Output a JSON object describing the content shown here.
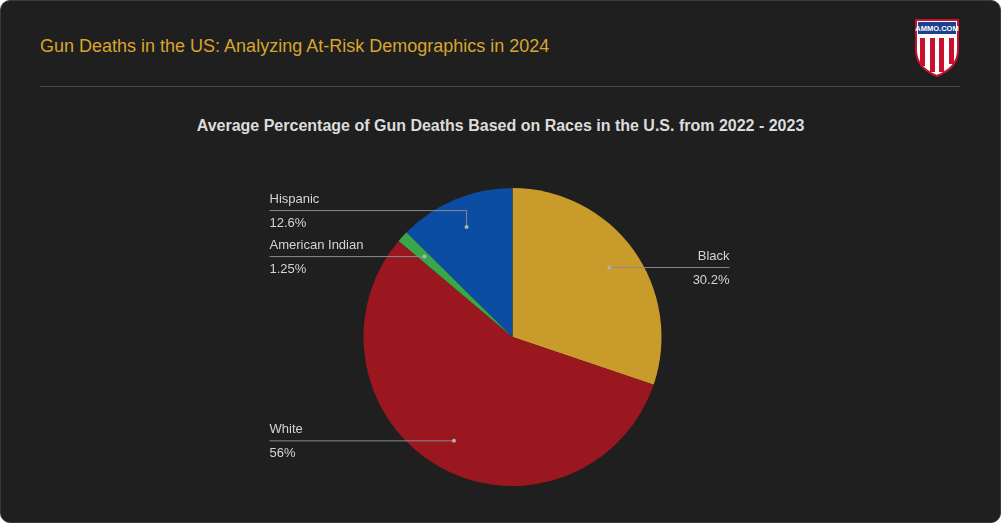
{
  "header": {
    "title": "Gun Deaths in the US: Analyzing At-Risk Demographics in 2024",
    "logo": "AMMO.COM"
  },
  "chart_data": {
    "type": "pie",
    "title": "Average Percentage of Gun Deaths Based on Races in the U.S. from 2022 - 2023",
    "categories": [
      "Black",
      "White",
      "American Indian",
      "Hispanic"
    ],
    "values": [
      30.2,
      56,
      1.25,
      12.6
    ],
    "value_labels": [
      "30.2%",
      "56%",
      "1.25%",
      "12.6%"
    ],
    "colors": [
      "#c99b2a",
      "#9b171f",
      "#3aa64a",
      "#0b4da2"
    ],
    "data_labels": true
  }
}
